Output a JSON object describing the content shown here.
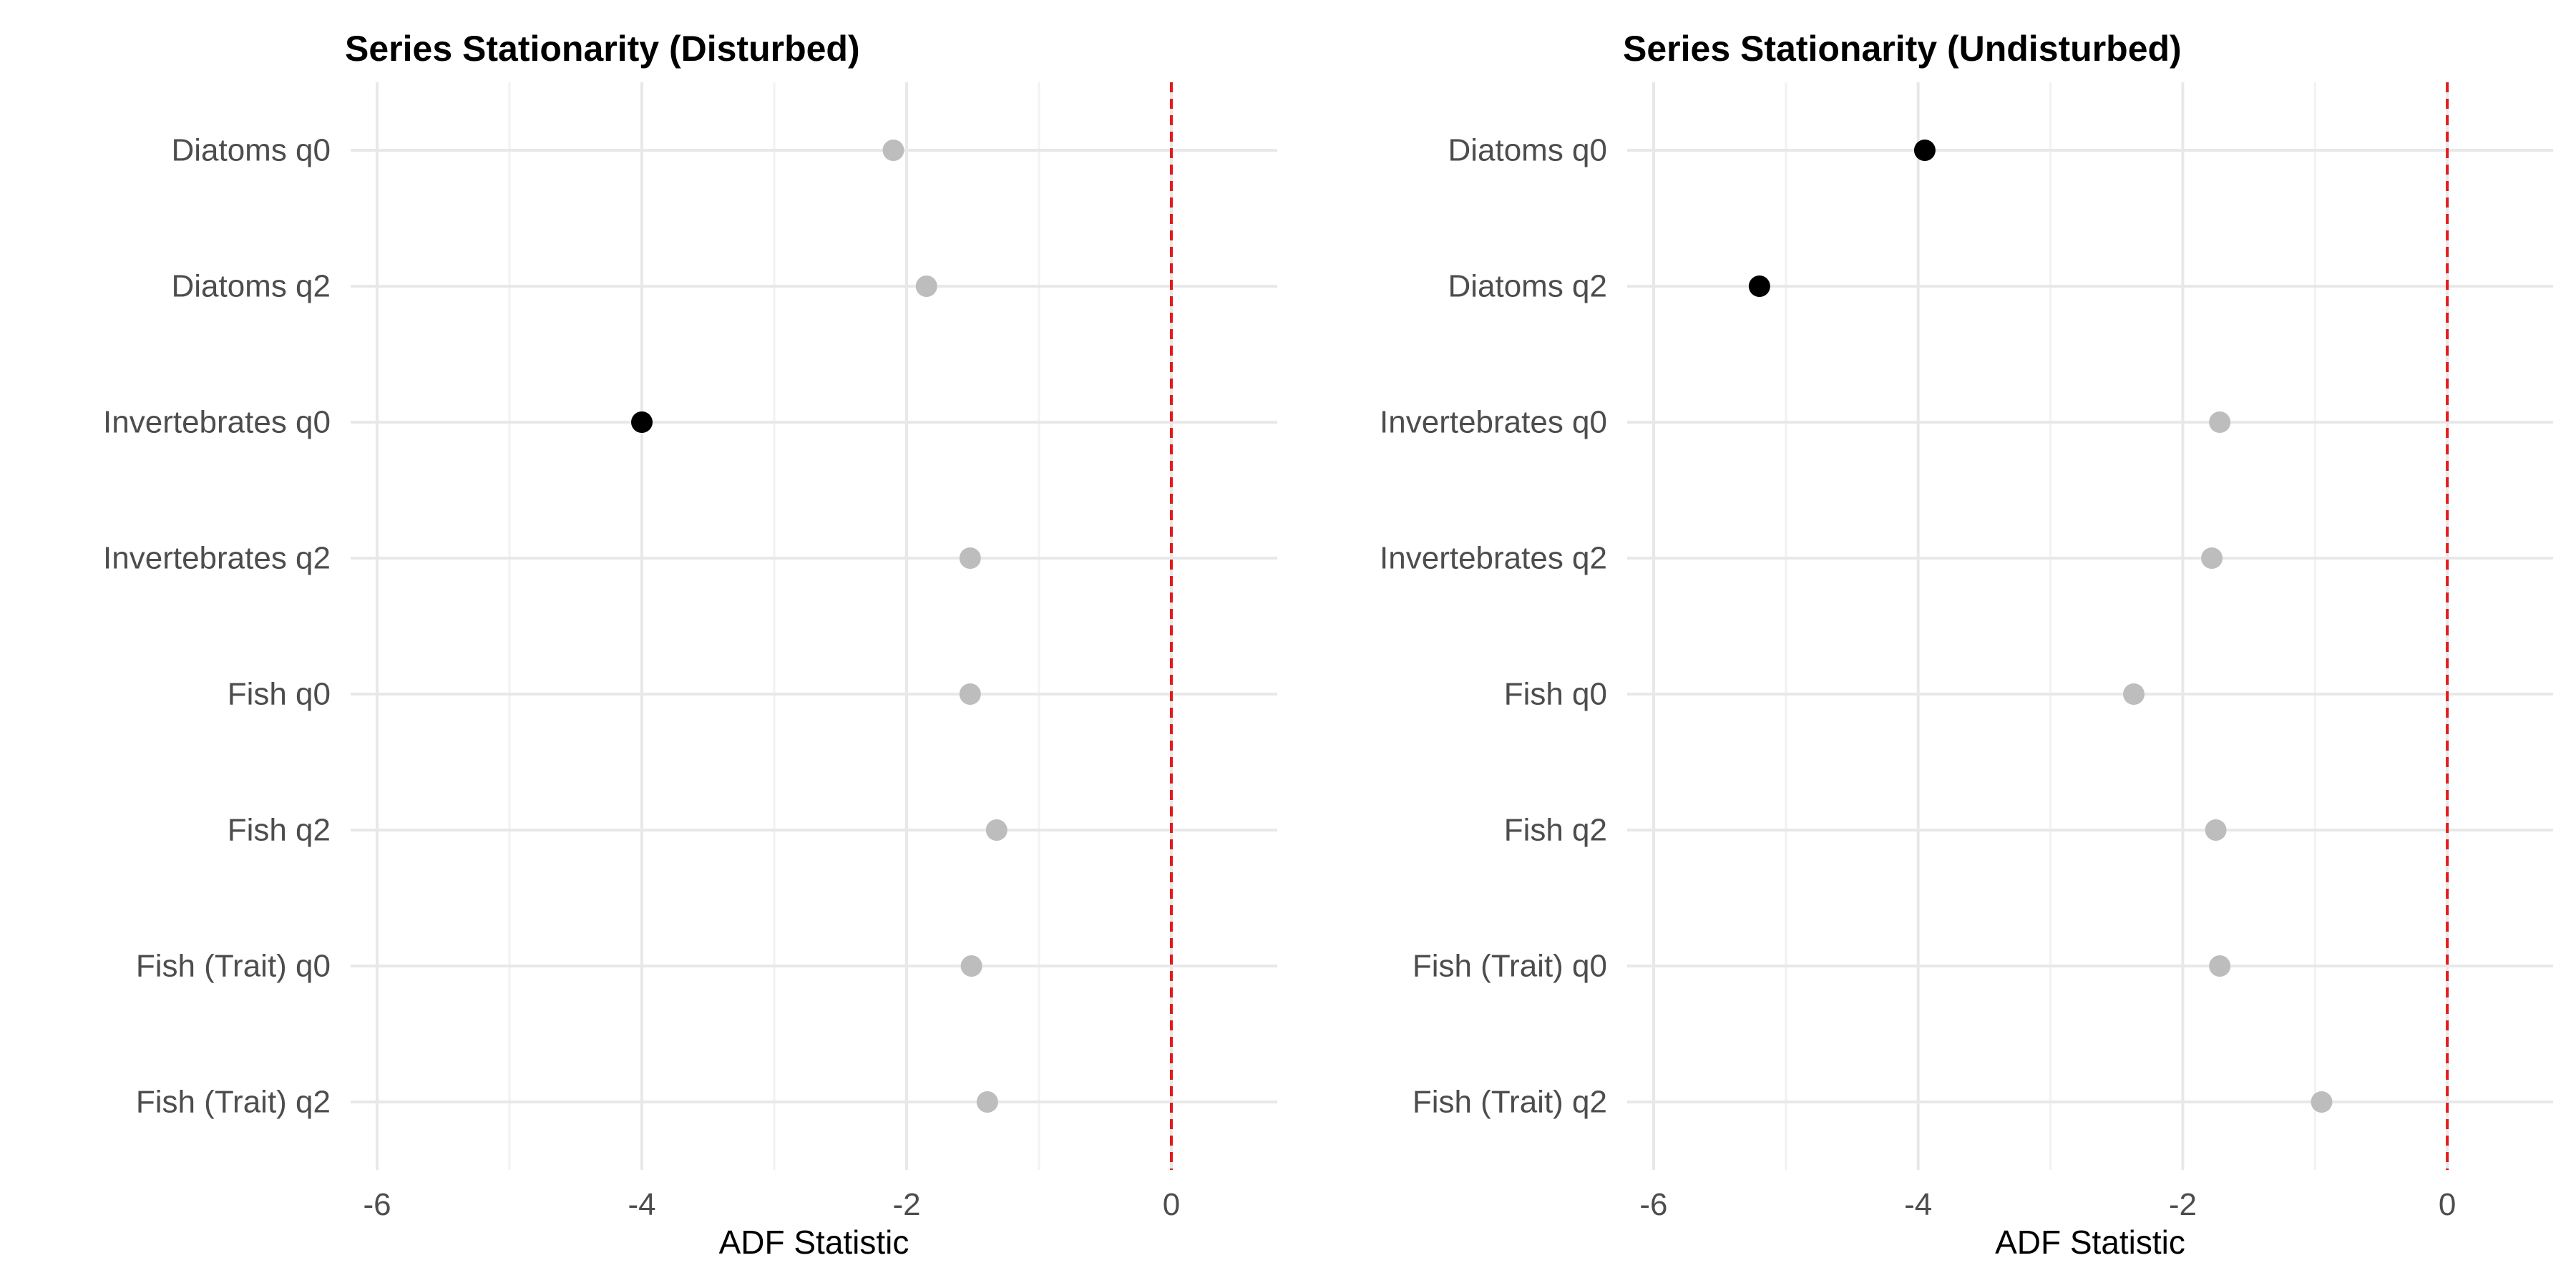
{
  "chart_data": [
    {
      "type": "scatter",
      "title": "Series Stationarity (Disturbed)",
      "xlabel": "ADF Statistic",
      "ylabel": "",
      "xlim": [
        -6.2,
        0.8
      ],
      "x_ticks": [
        -6,
        -4,
        -2,
        0
      ],
      "x_tick_labels": [
        "-6",
        "-4",
        "-2",
        "0"
      ],
      "reference_line": {
        "x": 0,
        "style": "dashed",
        "color": "#e41a1c"
      },
      "grid": true,
      "categories": [
        "Diatoms q0",
        "Diatoms q2",
        "Invertebrates q0",
        "Invertebrates q2",
        "Fish q0",
        "Fish q2",
        "Fish (Trait) q0",
        "Fish (Trait) q2"
      ],
      "values": [
        -2.1,
        -1.85,
        -4.0,
        -1.52,
        -1.52,
        -1.32,
        -1.51,
        -1.39
      ],
      "stationary": [
        false,
        false,
        true,
        false,
        false,
        false,
        false,
        false
      ],
      "colors": {
        "stationary": "#000000",
        "non_stationary": "#bdbdbd"
      }
    },
    {
      "type": "scatter",
      "title": "Series Stationarity (Undisturbed)",
      "xlabel": "ADF Statistic",
      "ylabel": "",
      "xlim": [
        -6.2,
        0.8
      ],
      "x_ticks": [
        -6,
        -4,
        -2,
        0
      ],
      "x_tick_labels": [
        "-6",
        "-4",
        "-2",
        "0"
      ],
      "reference_line": {
        "x": 0,
        "style": "dashed",
        "color": "#e41a1c"
      },
      "grid": true,
      "categories": [
        "Diatoms q0",
        "Diatoms q2",
        "Invertebrates q0",
        "Invertebrates q2",
        "Fish q0",
        "Fish q2",
        "Fish (Trait) q0",
        "Fish (Trait) q2"
      ],
      "values": [
        -3.95,
        -5.2,
        -1.72,
        -1.78,
        -2.37,
        -1.75,
        -1.72,
        -0.95
      ],
      "stationary": [
        true,
        true,
        false,
        false,
        false,
        false,
        false,
        false
      ],
      "colors": {
        "stationary": "#000000",
        "non_stationary": "#bdbdbd"
      }
    }
  ]
}
